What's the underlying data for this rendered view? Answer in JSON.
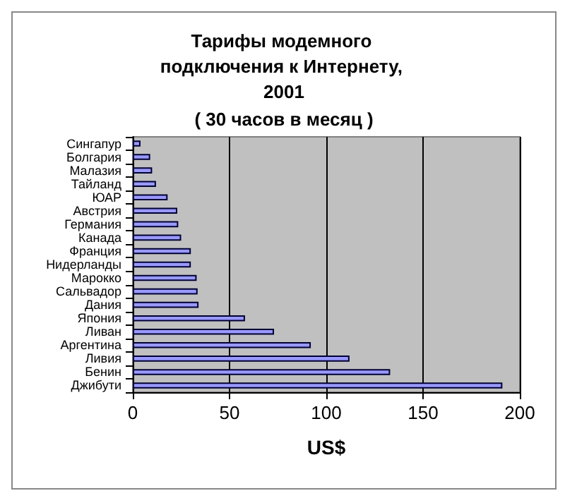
{
  "chart_data": {
    "type": "bar",
    "orientation": "horizontal",
    "title": "Тарифы модемного подключения к Интернету, 2001",
    "subtitle": "( 30 часов в месяц )",
    "xlabel": "US$",
    "categories": [
      "Сингапур",
      "Болгария",
      "Малазия",
      "Тайланд",
      "ЮАР",
      "Австрия",
      "Германия",
      "Канада",
      "Франция",
      "Нидерланды",
      "Марокко",
      "Сальвадор",
      "Дания",
      "Япония",
      "Ливан",
      "Аргентина",
      "Ливия",
      "Бенин",
      "Джибути"
    ],
    "values": [
      4,
      9,
      10,
      12,
      18,
      23,
      23.5,
      25,
      30,
      30,
      33,
      33.5,
      34,
      58,
      73,
      92,
      112,
      133,
      191
    ],
    "color": "#9999ff",
    "xlim": [
      0,
      200
    ],
    "xticks": [
      0,
      50,
      100,
      150,
      200
    ],
    "grid": "x"
  }
}
